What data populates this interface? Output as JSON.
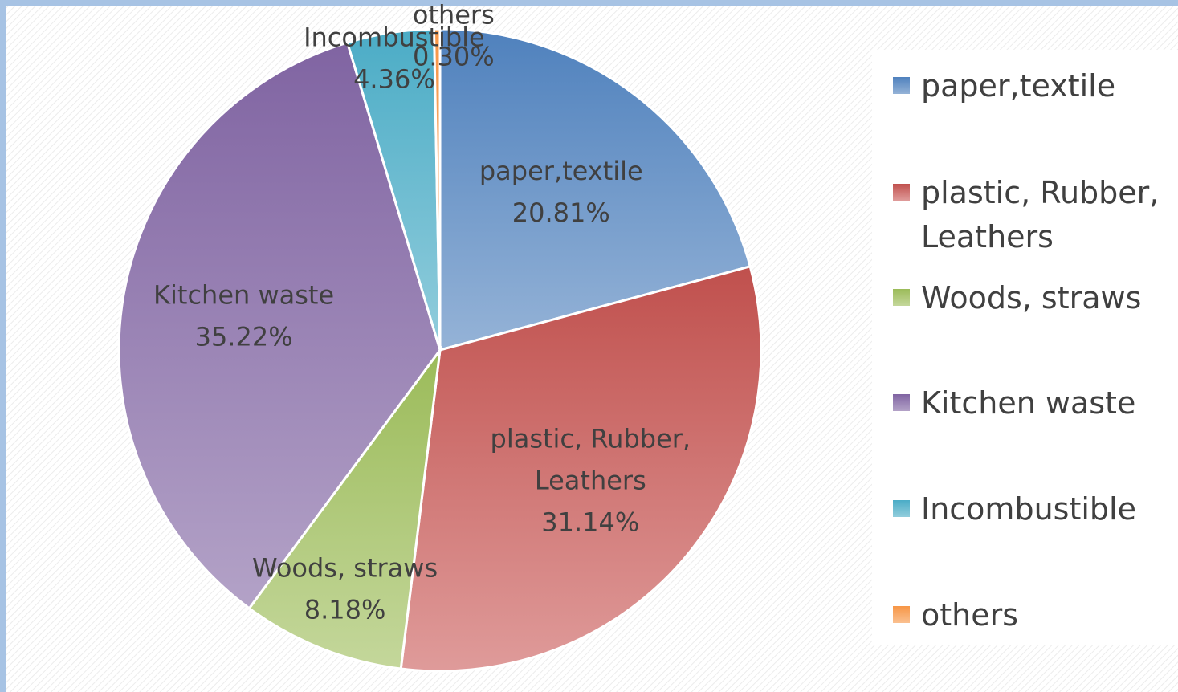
{
  "chart_data": {
    "type": "pie",
    "title": "",
    "slices": [
      {
        "label": "paper,textile",
        "value": 20.81,
        "display": "20.81%",
        "color": "#4f81bd",
        "color_light": "#95b3d7"
      },
      {
        "label": "plastic, Rubber, Leathers",
        "display_lines": [
          "plastic, Rubber,",
          "Leathers"
        ],
        "value": 31.14,
        "display": "31.14%",
        "color": "#c0504d",
        "color_light": "#df9b9a"
      },
      {
        "label": "Woods, straws",
        "value": 8.18,
        "display": "8.18%",
        "color": "#9bbb59",
        "color_light": "#c4d79b"
      },
      {
        "label": "Kitchen waste",
        "value": 35.22,
        "display": "35.22%",
        "color": "#8064a2",
        "color_light": "#b3a2c7"
      },
      {
        "label": "Incombustible",
        "value": 4.36,
        "display": "4.36%",
        "color": "#4bacc6",
        "color_light": "#92cddc"
      },
      {
        "label": "others",
        "value": 0.3,
        "display": "0.30%",
        "color": "#f79646",
        "color_light": "#fac090"
      }
    ],
    "legend": {
      "placement": "right",
      "entries": [
        {
          "lines": [
            "paper,textile"
          ]
        },
        {
          "lines": [
            "plastic, Rubber,",
            "Leathers"
          ]
        },
        {
          "lines": [
            "Woods, straws"
          ]
        },
        {
          "lines": [
            "Kitchen waste"
          ]
        },
        {
          "lines": [
            "Incombustible"
          ]
        },
        {
          "lines": [
            "others"
          ]
        }
      ]
    }
  }
}
